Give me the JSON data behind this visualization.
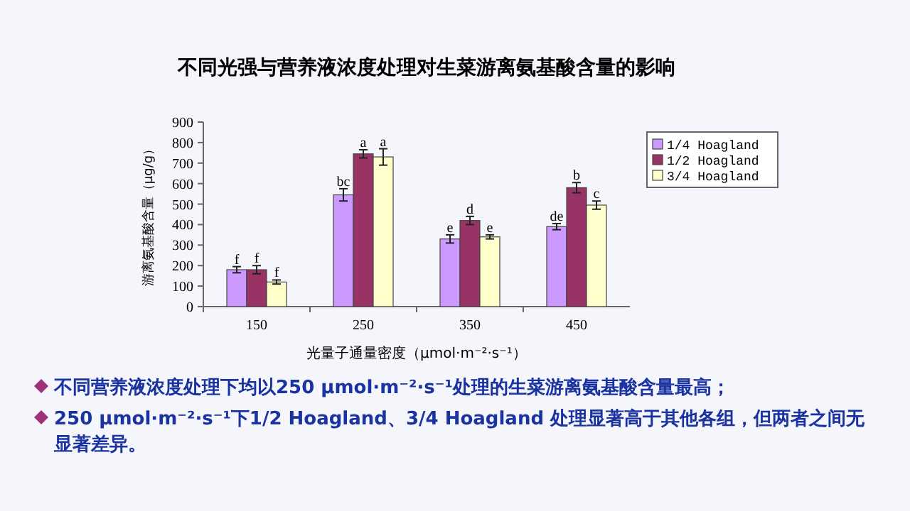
{
  "chart_data": {
    "type": "bar",
    "title": "不同光强与营养液浓度处理对生菜游离氨基酸含量的影响",
    "xlabel": "光量子通量密度（μmol·m⁻²·s⁻¹）",
    "ylabel": "游离氨基酸含量（μg/g）",
    "categories": [
      "150",
      "250",
      "350",
      "450"
    ],
    "series": [
      {
        "name": "1/4 Hoagland",
        "color": "#cc99ff",
        "values": [
          180,
          545,
          330,
          390
        ],
        "errors": [
          15,
          30,
          20,
          15
        ],
        "value_labels": [
          "f",
          "bc",
          "e",
          "de"
        ]
      },
      {
        "name": "1/2 Hoagland",
        "color": "#993366",
        "values": [
          180,
          745,
          420,
          580
        ],
        "errors": [
          20,
          20,
          20,
          25
        ],
        "value_labels": [
          "f",
          "a",
          "d",
          "b"
        ]
      },
      {
        "name": "3/4 Hoagland",
        "color": "#ffffcc",
        "values": [
          120,
          730,
          340,
          495
        ],
        "errors": [
          10,
          40,
          10,
          20
        ],
        "value_labels": [
          "f",
          "a",
          "e",
          "c"
        ]
      }
    ],
    "ylim": [
      0,
      900
    ],
    "yticks": [
      0,
      100,
      200,
      300,
      400,
      500,
      600,
      700,
      800,
      900
    ],
    "grid": false,
    "legend": "top right",
    "annotations": [
      "不同营养液浓度处理下均以250 μmol·m⁻²·s⁻¹处理的生菜游离氨基酸含量最高；",
      "250 μmol·m⁻²·s⁻¹下1/2 Hoagland、3/4 Hoagland 处理显著高于其他各组，但两者之间无显著差异。"
    ]
  }
}
